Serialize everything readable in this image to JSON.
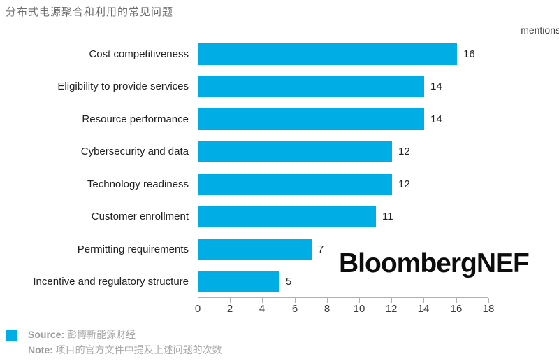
{
  "title": "分布式电源聚合和利用的常见问题",
  "axis_unit_label": "mentions",
  "watermark": "BloombergNEF",
  "colors": {
    "bar": "#00ade4",
    "axis": "#b0b0b0",
    "title_gray": "#6e6e6e",
    "footer_gray": "#a8a8a8"
  },
  "chart_data": {
    "type": "bar",
    "orientation": "horizontal",
    "title": "分布式电源聚合和利用的常见问题",
    "xlabel": "mentions",
    "categories": [
      "Cost competitiveness",
      "Eligibility to provide services",
      "Resource performance",
      "Cybersecurity and data",
      "Technology readiness",
      "Customer enrollment",
      "Permitting requirements",
      "Incentive and regulatory structure"
    ],
    "values": [
      16,
      14,
      14,
      12,
      12,
      11,
      7,
      5
    ],
    "xlim": [
      0,
      18
    ],
    "x_ticks": [
      0,
      2,
      4,
      6,
      8,
      10,
      12,
      14,
      16,
      18
    ],
    "grid": false,
    "legend_position": "none"
  },
  "footer": {
    "source_label": "Source:",
    "source_text": "彭博新能源财经",
    "note_label": "Note:",
    "note_text": "项目的官方文件中提及上述问题的次数"
  }
}
